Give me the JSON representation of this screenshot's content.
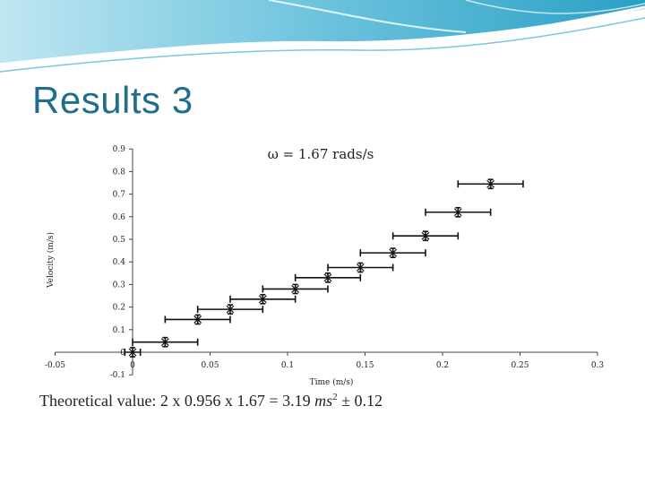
{
  "slide": {
    "title": "Results 3",
    "banner_colors": {
      "light": "#bfe6f2",
      "mid": "#6cc3dd",
      "dark": "#1f8fb4"
    },
    "accent_color": "#1f6e8c"
  },
  "chart_data": {
    "type": "scatter",
    "title": "ω = 1.67 rads/s",
    "xlabel": "Time (m/s)",
    "ylabel": "Velocity (m/s)",
    "xlim": [
      -0.05,
      0.3
    ],
    "ylim": [
      -0.1,
      0.9
    ],
    "x_ticks": [
      -0.05,
      0,
      0.05,
      0.1,
      0.15,
      0.2,
      0.25,
      0.3
    ],
    "x_tick_labels": [
      "-0.05",
      "0",
      "0.05",
      "0.1",
      "0.15",
      "0.2",
      "0.25",
      "0.3"
    ],
    "y_ticks": [
      -0.1,
      0,
      0.1,
      0.2,
      0.3,
      0.4,
      0.5,
      0.6,
      0.7,
      0.8,
      0.9
    ],
    "y_tick_labels": [
      "-0.1",
      "0",
      "0.1",
      "0.2",
      "0.3",
      "0.4",
      "0.5",
      "0.6",
      "0.7",
      "0.8",
      "0.9"
    ],
    "marker": "x",
    "grid": false,
    "points": [
      {
        "x": 0.0,
        "y": 0.0,
        "xerr": 0.005,
        "yerr": 0.02
      },
      {
        "x": 0.021,
        "y": 0.045,
        "xerr": 0.021,
        "yerr": 0.02
      },
      {
        "x": 0.042,
        "y": 0.145,
        "xerr": 0.021,
        "yerr": 0.02
      },
      {
        "x": 0.063,
        "y": 0.19,
        "xerr": 0.021,
        "yerr": 0.02
      },
      {
        "x": 0.084,
        "y": 0.235,
        "xerr": 0.021,
        "yerr": 0.02
      },
      {
        "x": 0.105,
        "y": 0.28,
        "xerr": 0.021,
        "yerr": 0.02
      },
      {
        "x": 0.126,
        "y": 0.33,
        "xerr": 0.021,
        "yerr": 0.02
      },
      {
        "x": 0.147,
        "y": 0.375,
        "xerr": 0.021,
        "yerr": 0.02
      },
      {
        "x": 0.168,
        "y": 0.44,
        "xerr": 0.021,
        "yerr": 0.02
      },
      {
        "x": 0.189,
        "y": 0.515,
        "xerr": 0.021,
        "yerr": 0.02
      },
      {
        "x": 0.21,
        "y": 0.62,
        "xerr": 0.021,
        "yerr": 0.02
      },
      {
        "x": 0.231,
        "y": 0.745,
        "xerr": 0.021,
        "yerr": 0.02
      }
    ]
  },
  "caption": {
    "prefix": "Theoretical value: 2 x 0.956 x 1.67  = 3.19 ",
    "unit": "ms",
    "exponent": "2",
    "suffix": " ± 0.12"
  }
}
